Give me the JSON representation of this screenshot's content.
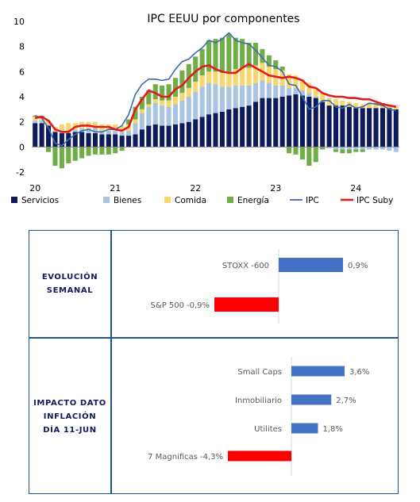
{
  "chart_data": [
    {
      "type": "bar+line",
      "title": "IPC EEUU por componentes",
      "xlabel": "",
      "ylabel": "",
      "ylim": [
        -2,
        10
      ],
      "yticks": [
        -2,
        0,
        2,
        4,
        6,
        8,
        10
      ],
      "x_tick_labels": [
        "20",
        "21",
        "22",
        "23",
        "24"
      ],
      "grid": false,
      "legend_position": "bottom",
      "stacked": true,
      "x_periods": [
        "2020-01",
        "2020-02",
        "2020-03",
        "2020-04",
        "2020-05",
        "2020-06",
        "2020-07",
        "2020-08",
        "2020-09",
        "2020-10",
        "2020-11",
        "2020-12",
        "2021-01",
        "2021-02",
        "2021-03",
        "2021-04",
        "2021-05",
        "2021-06",
        "2021-07",
        "2021-08",
        "2021-09",
        "2021-10",
        "2021-11",
        "2021-12",
        "2022-01",
        "2022-02",
        "2022-03",
        "2022-04",
        "2022-05",
        "2022-06",
        "2022-07",
        "2022-08",
        "2022-09",
        "2022-10",
        "2022-11",
        "2022-12",
        "2023-01",
        "2023-02",
        "2023-03",
        "2023-04",
        "2023-05",
        "2023-06",
        "2023-07",
        "2023-08",
        "2023-09",
        "2023-10",
        "2023-11",
        "2023-12",
        "2024-01",
        "2024-02",
        "2024-03",
        "2024-04",
        "2024-05",
        "2024-06",
        "2024-07"
      ],
      "series": [
        {
          "name": "Servicios",
          "kind": "bar",
          "color": "#0d1b5c",
          "values": [
            1.9,
            1.9,
            1.7,
            1.2,
            1.1,
            1.1,
            1.2,
            1.2,
            1.1,
            1.1,
            1.0,
            1.0,
            1.0,
            0.9,
            0.9,
            1.0,
            1.4,
            1.7,
            1.8,
            1.7,
            1.7,
            1.8,
            1.9,
            2.0,
            2.2,
            2.4,
            2.6,
            2.7,
            2.8,
            3.0,
            3.1,
            3.2,
            3.3,
            3.6,
            3.9,
            3.9,
            3.9,
            4.0,
            4.1,
            4.2,
            4.1,
            4.0,
            3.9,
            3.6,
            3.3,
            3.3,
            3.3,
            3.2,
            3.1,
            3.1,
            3.1,
            3.1,
            3.1,
            3.1,
            3.0
          ]
        },
        {
          "name": "Bienes",
          "kind": "bar",
          "color": "#a9c4e0",
          "values": [
            0.2,
            0.2,
            0.1,
            0.1,
            0.2,
            0.2,
            0.2,
            0.3,
            0.4,
            0.4,
            0.3,
            0.3,
            0.3,
            0.3,
            0.4,
            0.9,
            1.3,
            1.5,
            1.7,
            1.6,
            1.5,
            1.6,
            1.8,
            2.0,
            2.2,
            2.4,
            2.5,
            2.3,
            2.0,
            1.8,
            1.8,
            1.7,
            1.6,
            1.5,
            1.4,
            1.2,
            1.0,
            0.9,
            0.6,
            0.5,
            0.4,
            0.3,
            0.1,
            0.0,
            -0.1,
            -0.2,
            -0.2,
            -0.2,
            -0.2,
            -0.2,
            -0.2,
            -0.2,
            -0.2,
            -0.3,
            -0.4
          ]
        },
        {
          "name": "Comida",
          "kind": "bar",
          "color": "#f9d66b",
          "values": [
            0.3,
            0.3,
            0.3,
            0.3,
            0.5,
            0.6,
            0.5,
            0.5,
            0.5,
            0.5,
            0.5,
            0.5,
            0.5,
            0.5,
            0.5,
            0.3,
            0.3,
            0.2,
            0.3,
            0.4,
            0.5,
            0.6,
            0.6,
            0.7,
            0.8,
            0.9,
            0.9,
            1.0,
            1.1,
            1.2,
            1.3,
            1.4,
            1.4,
            1.4,
            1.4,
            1.3,
            1.3,
            1.2,
            1.1,
            1.0,
            0.9,
            0.8,
            0.7,
            0.7,
            0.6,
            0.5,
            0.4,
            0.4,
            0.4,
            0.3,
            0.3,
            0.3,
            0.3,
            0.3,
            0.3
          ]
        },
        {
          "name": "Energía",
          "kind": "bar",
          "color": "#70ad47",
          "values": [
            0.1,
            0.1,
            -0.4,
            -1.5,
            -1.7,
            -1.3,
            -1.1,
            -0.9,
            -0.7,
            -0.6,
            -0.6,
            -0.6,
            -0.5,
            -0.3,
            0.4,
            1.0,
            1.0,
            1.1,
            1.2,
            1.2,
            1.3,
            1.5,
            1.8,
            1.9,
            2.0,
            2.1,
            2.5,
            2.6,
            2.8,
            3.0,
            2.5,
            2.3,
            2.0,
            1.8,
            1.1,
            0.9,
            0.7,
            0.3,
            -0.5,
            -0.6,
            -1.0,
            -1.5,
            -1.2,
            -0.2,
            0.0,
            -0.2,
            -0.3,
            -0.3,
            -0.2,
            -0.2,
            0.1,
            0.1,
            0.1,
            0.0,
            0.0
          ]
        },
        {
          "name": "IPC",
          "kind": "line",
          "color": "#3c6bb3",
          "values": [
            2.5,
            2.3,
            1.5,
            0.3,
            0.1,
            0.6,
            1.0,
            1.3,
            1.4,
            1.2,
            1.2,
            1.4,
            1.4,
            1.7,
            2.6,
            4.2,
            5.0,
            5.4,
            5.4,
            5.3,
            5.4,
            6.2,
            6.8,
            7.0,
            7.5,
            7.9,
            8.5,
            8.3,
            8.6,
            9.1,
            8.5,
            8.3,
            8.2,
            7.7,
            7.1,
            6.5,
            6.4,
            6.0,
            5.0,
            4.9,
            4.0,
            3.0,
            3.2,
            3.7,
            3.7,
            3.2,
            3.1,
            3.4,
            3.1,
            3.2,
            3.5,
            3.4,
            3.3,
            3.0,
            2.9
          ]
        },
        {
          "name": "IPC Suby",
          "kind": "line",
          "color": "#e31a1c",
          "values": [
            2.3,
            2.4,
            2.1,
            1.4,
            1.2,
            1.2,
            1.6,
            1.7,
            1.7,
            1.6,
            1.6,
            1.6,
            1.4,
            1.3,
            1.6,
            3.0,
            3.8,
            4.5,
            4.3,
            4.0,
            4.0,
            4.6,
            4.9,
            5.5,
            6.0,
            6.4,
            6.5,
            6.2,
            6.0,
            5.9,
            5.9,
            6.3,
            6.6,
            6.3,
            6.0,
            5.7,
            5.6,
            5.5,
            5.6,
            5.5,
            5.3,
            4.8,
            4.7,
            4.3,
            4.1,
            4.0,
            4.0,
            3.9,
            3.9,
            3.8,
            3.8,
            3.6,
            3.4,
            3.3,
            3.2
          ]
        }
      ]
    },
    {
      "type": "bar",
      "orientation": "horizontal",
      "panel_label": "EVOLUCIÓN\nSEMANAL",
      "categories": [
        "STOXX -600",
        "S&P 500"
      ],
      "values": [
        0.9,
        -0.9
      ],
      "value_labels": [
        "0,9%",
        "-0,9%"
      ],
      "colors": [
        "#4472c4",
        "#ff0000"
      ]
    },
    {
      "type": "bar",
      "orientation": "horizontal",
      "panel_label": "IMPACTO DATO\nINFLACIÓN\nDÍA 11-JUN",
      "categories": [
        "Small Caps",
        "Inmobiliario",
        "Utilites",
        "7 Magnificas"
      ],
      "values": [
        3.6,
        2.7,
        1.8,
        -4.3
      ],
      "value_labels": [
        "3,6%",
        "2,7%",
        "1,8%",
        "-4,3%"
      ],
      "colors": [
        "#4472c4",
        "#4472c4",
        "#4472c4",
        "#ff0000"
      ]
    }
  ]
}
